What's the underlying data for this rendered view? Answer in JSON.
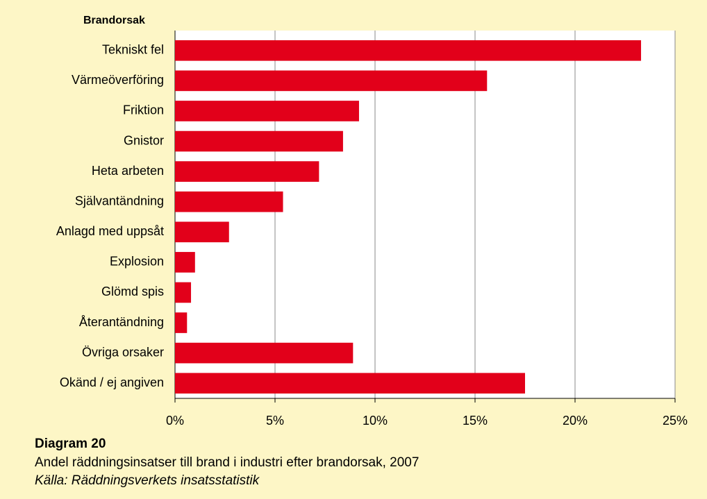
{
  "chart_data": {
    "type": "bar",
    "orientation": "horizontal",
    "axis_title": "Brandorsak",
    "categories": [
      "Tekniskt fel",
      "Värmeöverföring",
      "Friktion",
      "Gnistor",
      "Heta arbeten",
      "Självantändning",
      "Anlagd med uppsåt",
      "Explosion",
      "Glömd spis",
      "Återantändning",
      "Övriga orsaker",
      "Okänd / ej angiven"
    ],
    "values": [
      23.3,
      15.6,
      9.2,
      8.4,
      7.2,
      5.4,
      2.7,
      1.0,
      0.8,
      0.6,
      8.9,
      17.5
    ],
    "color": "#e2001a",
    "xlim": [
      0,
      25
    ],
    "xticks": [
      {
        "value": 0,
        "label": "0%"
      },
      {
        "value": 5,
        "label": "5%"
      },
      {
        "value": 10,
        "label": "10%"
      },
      {
        "value": 15,
        "label": "15%"
      },
      {
        "value": 20,
        "label": "20%"
      },
      {
        "value": 25,
        "label": "25%"
      }
    ],
    "grid": true,
    "title": "Diagram 20",
    "subtitle": "Andel räddningsinsatser till brand i industri efter brandorsak, 2007",
    "source": "Källa: Räddningsverkets insatsstatistik"
  }
}
